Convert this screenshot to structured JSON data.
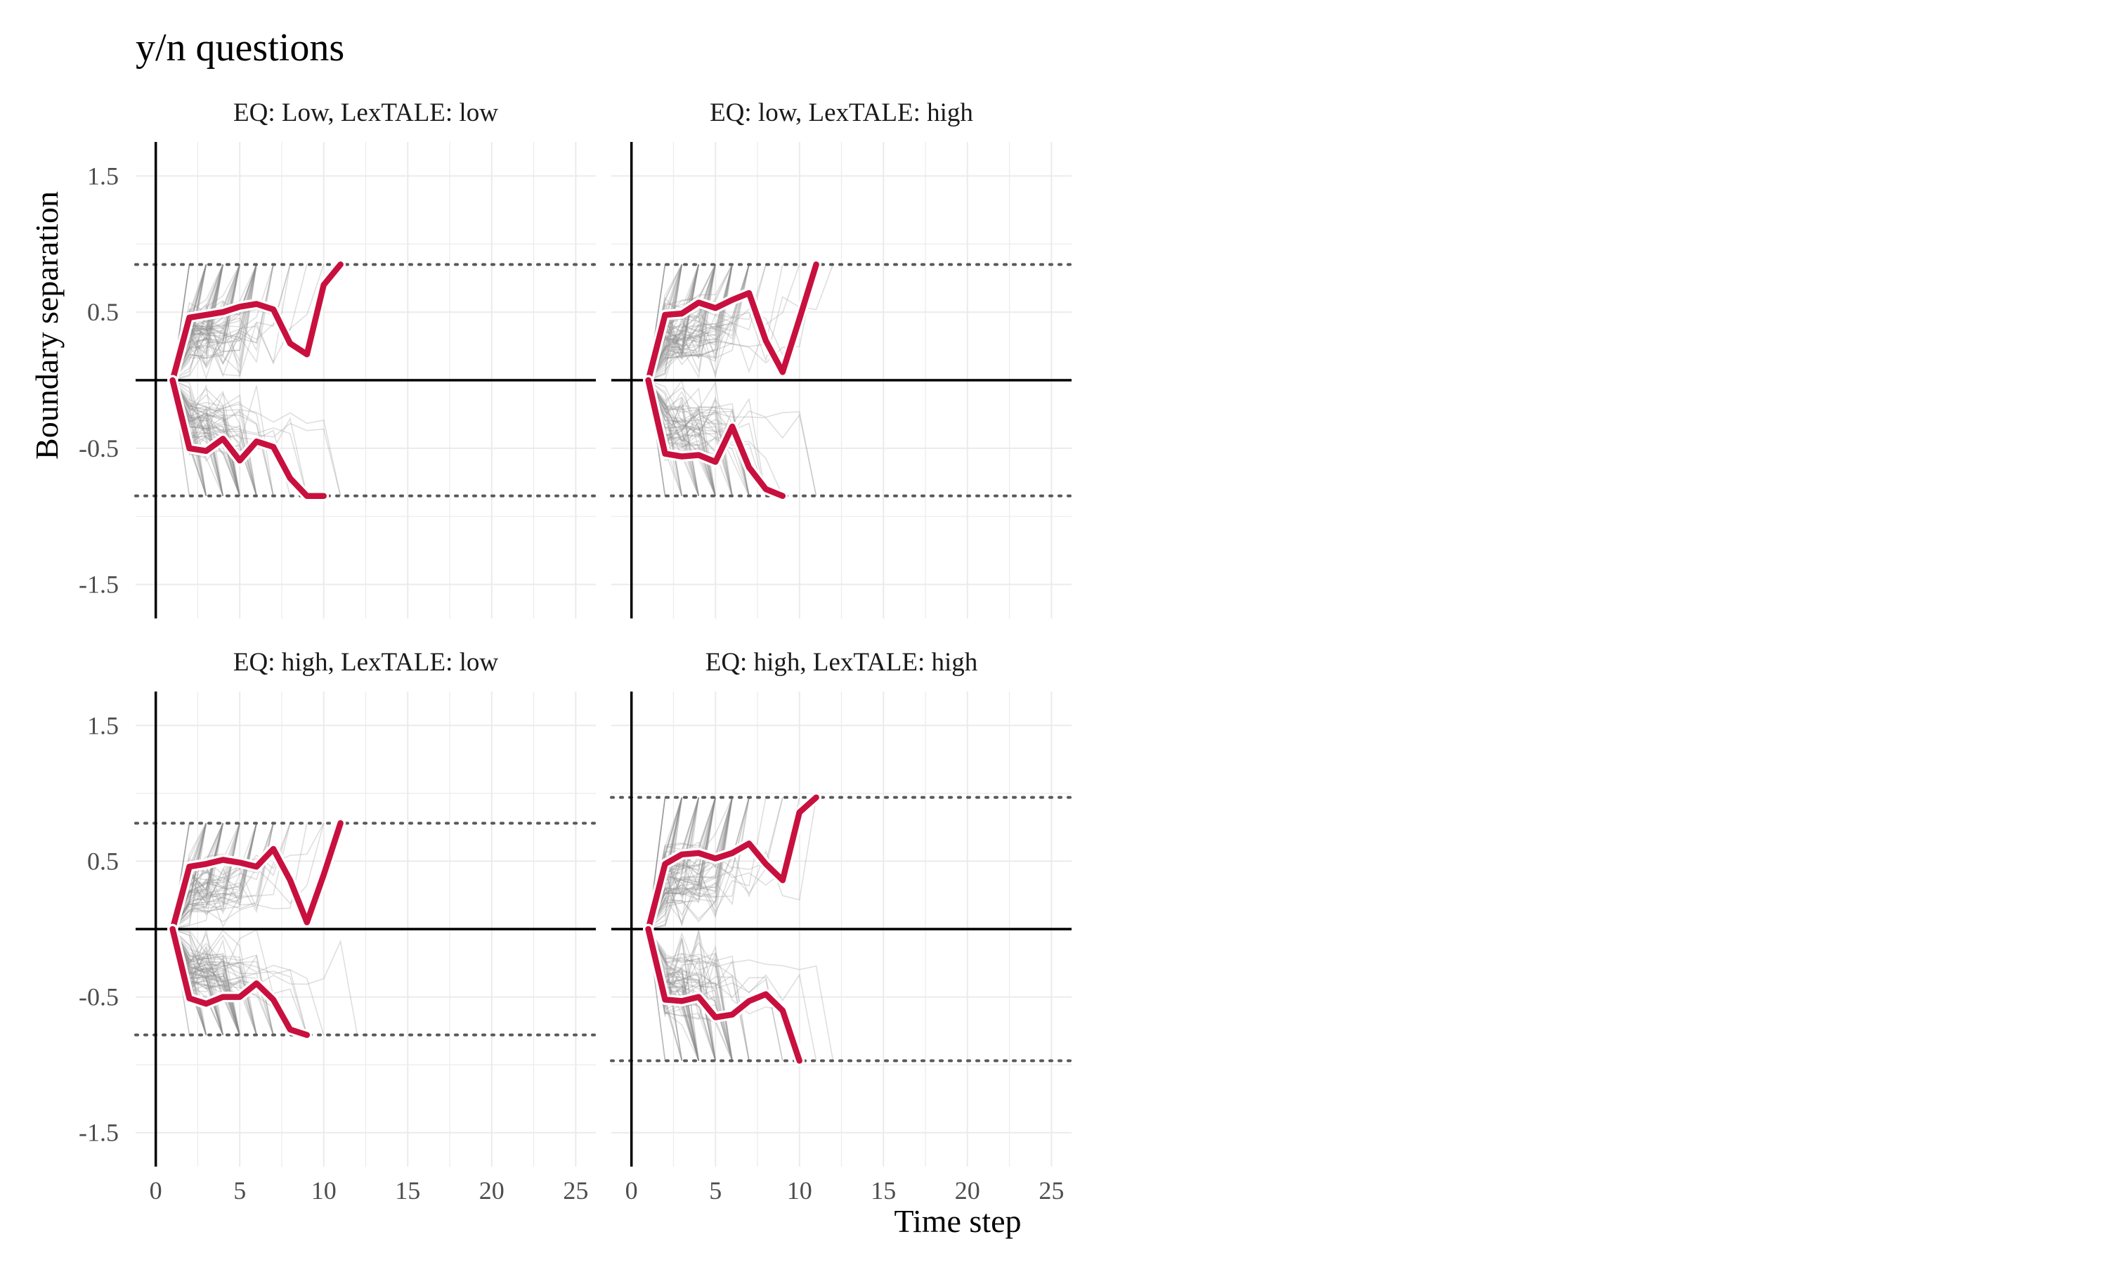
{
  "chart_data": {
    "type": "line",
    "title": "y/n questions",
    "xlabel": "Time step",
    "ylabel": "Boundary separation",
    "xlim": [
      -1.2,
      26.2
    ],
    "ylim": [
      -1.75,
      1.75
    ],
    "x_ticks": [
      0,
      5,
      10,
      15,
      20,
      25
    ],
    "x_tick_labels": [
      "0",
      "5",
      "10",
      "15",
      "20",
      "25"
    ],
    "y_ticks": [
      1.5,
      0.5,
      -0.5,
      -1.5
    ],
    "y_tick_labels": [
      "1.5",
      "0.5",
      "-0.5",
      "-1.5"
    ],
    "grid": true,
    "panels": [
      {
        "strip": "EQ: Low, LexTALE: low",
        "boundary": 0.85,
        "mean_upper": {
          "x": [
            1,
            2,
            3,
            4,
            5,
            6,
            7,
            8,
            9,
            10,
            11
          ],
          "y": [
            0,
            0.46,
            0.48,
            0.5,
            0.54,
            0.56,
            0.52,
            0.27,
            0.19,
            0.7,
            0.85
          ]
        },
        "mean_lower": {
          "x": [
            1,
            2,
            3,
            4,
            5,
            6,
            7,
            8,
            9,
            10
          ],
          "y": [
            0,
            -0.5,
            -0.52,
            -0.43,
            -0.59,
            -0.45,
            -0.49,
            -0.72,
            -0.85,
            -0.85
          ]
        }
      },
      {
        "strip": "EQ: low, LexTALE: high",
        "boundary": 0.85,
        "mean_upper": {
          "x": [
            1,
            2,
            3,
            4,
            5,
            6,
            7,
            8,
            9,
            10,
            11
          ],
          "y": [
            0,
            0.48,
            0.49,
            0.57,
            0.53,
            0.59,
            0.64,
            0.29,
            0.06,
            0.45,
            0.85
          ]
        },
        "mean_lower": {
          "x": [
            1,
            2,
            3,
            4,
            5,
            6,
            7,
            8,
            9
          ],
          "y": [
            0,
            -0.54,
            -0.56,
            -0.55,
            -0.6,
            -0.34,
            -0.64,
            -0.8,
            -0.85
          ]
        }
      },
      {
        "strip": "EQ: high, LexTALE: low",
        "boundary": 0.78,
        "mean_upper": {
          "x": [
            1,
            2,
            3,
            4,
            5,
            6,
            7,
            8,
            9,
            10,
            11
          ],
          "y": [
            0,
            0.46,
            0.48,
            0.51,
            0.49,
            0.46,
            0.59,
            0.36,
            0.05,
            0.4,
            0.78
          ]
        },
        "mean_lower": {
          "x": [
            1,
            2,
            3,
            4,
            5,
            6,
            7,
            8,
            9
          ],
          "y": [
            0,
            -0.51,
            -0.55,
            -0.5,
            -0.5,
            -0.4,
            -0.52,
            -0.74,
            -0.78
          ]
        }
      },
      {
        "strip": "EQ: high, LexTALE: high",
        "boundary": 0.97,
        "mean_upper": {
          "x": [
            1,
            2,
            3,
            4,
            5,
            6,
            7,
            8,
            9,
            10,
            11
          ],
          "y": [
            0,
            0.48,
            0.55,
            0.56,
            0.52,
            0.56,
            0.63,
            0.48,
            0.36,
            0.86,
            0.97
          ]
        },
        "mean_lower": {
          "x": [
            1,
            2,
            3,
            4,
            5,
            6,
            7,
            8,
            9,
            10
          ],
          "y": [
            0,
            -0.52,
            -0.53,
            -0.5,
            -0.65,
            -0.63,
            -0.53,
            -0.48,
            -0.6,
            -0.97
          ]
        }
      }
    ],
    "colors": {
      "mean_line": "#c8103e",
      "mean_halo": "#ffffff",
      "trajectories": "#8c8c8c",
      "boundary_line": "#595959",
      "zero_line": "#000000",
      "grid": "#ebebeb"
    }
  }
}
